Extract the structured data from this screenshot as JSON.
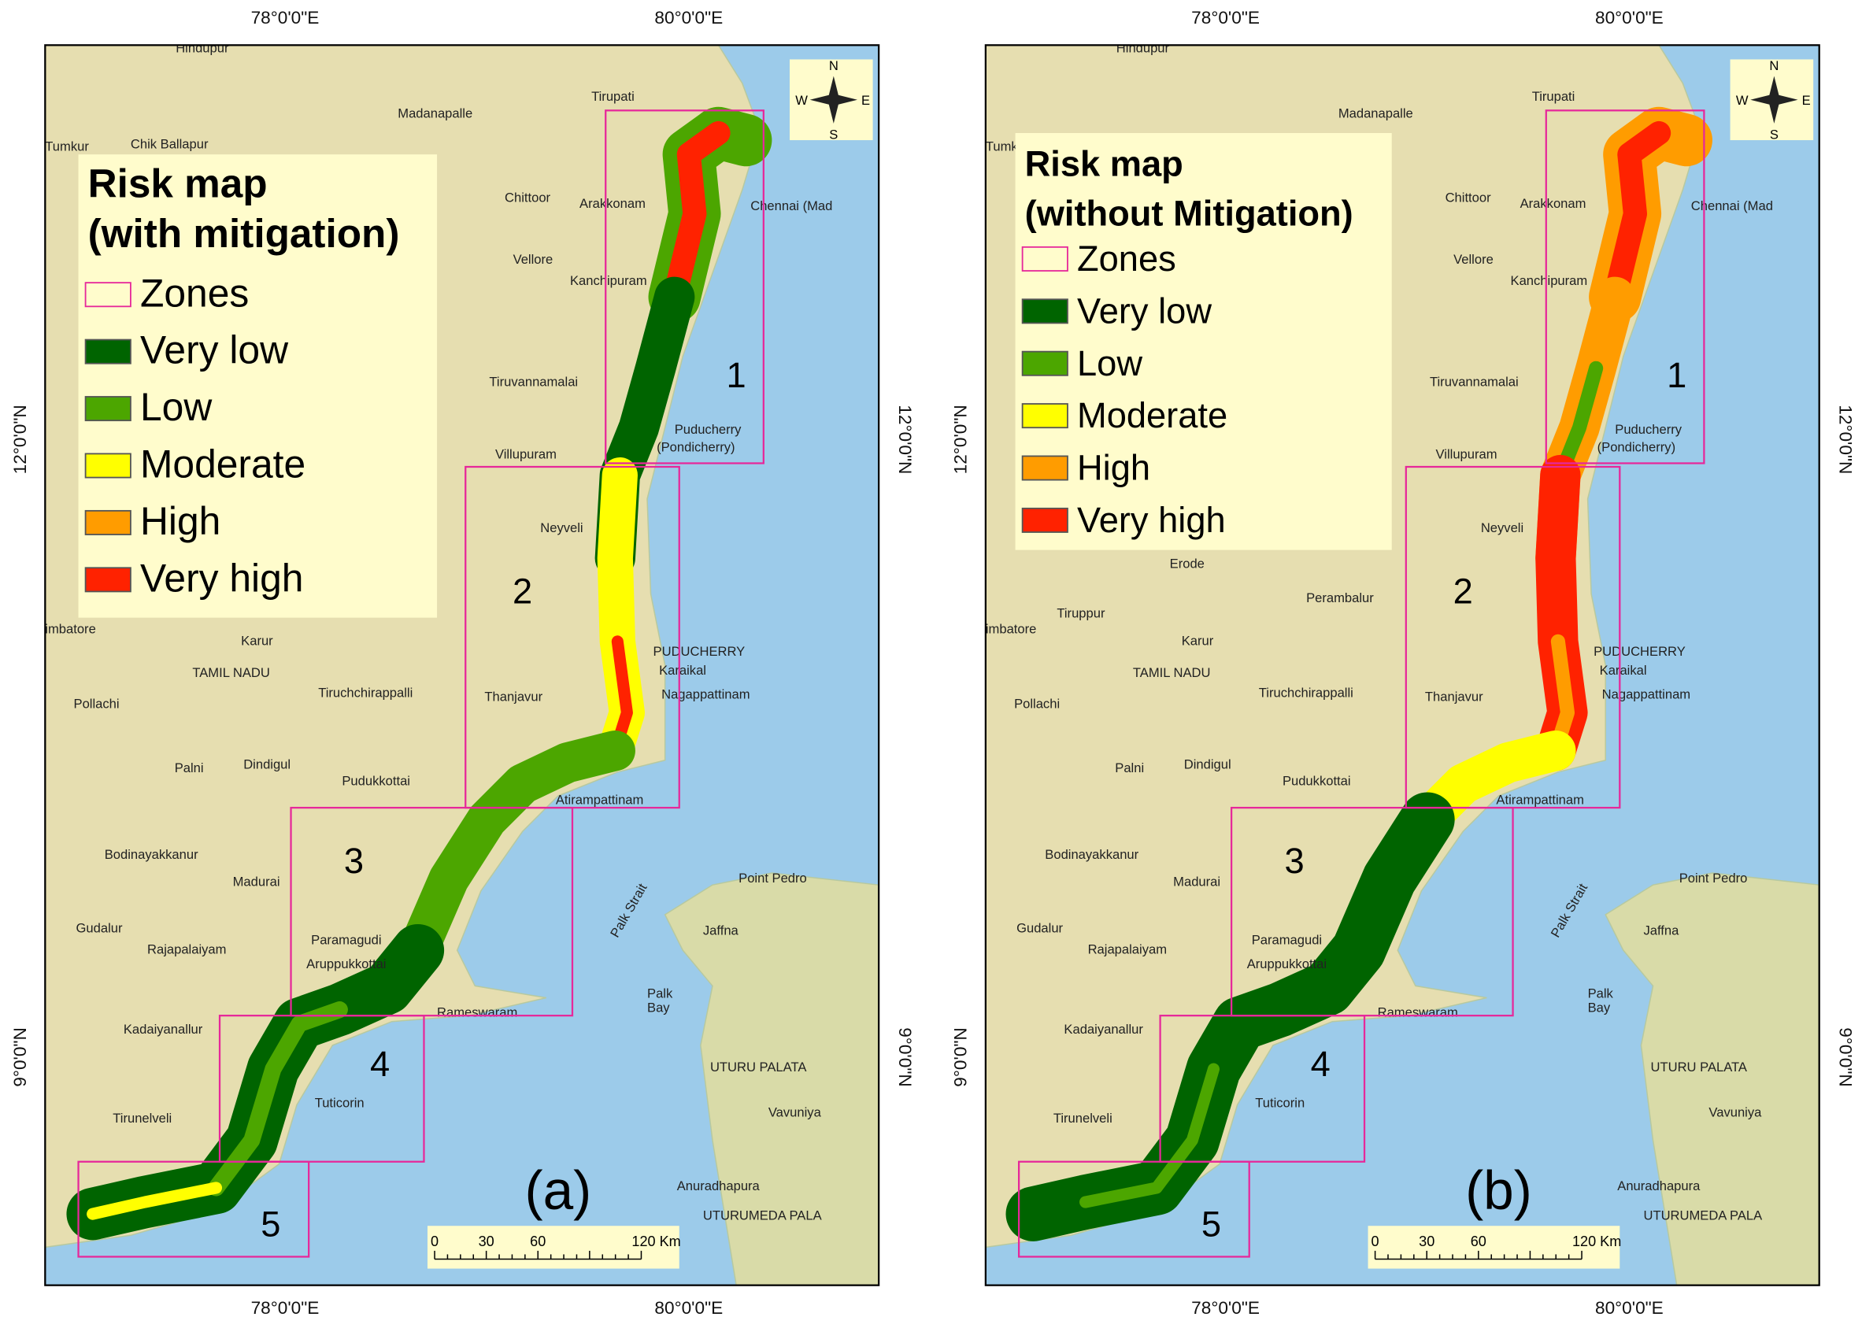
{
  "panels": [
    {
      "title": [
        "Risk map",
        "(with mitigation)"
      ],
      "panel_label": "(a)"
    },
    {
      "title": [
        "Risk map",
        "(without Mitigation)"
      ],
      "panel_label": "(b)"
    }
  ],
  "legend": [
    {
      "label": "Zones",
      "color": "#e6289a"
    },
    {
      "label": "Very low",
      "color": "#006400"
    },
    {
      "label": "Low",
      "color": "#4ca600"
    },
    {
      "label": "Moderate",
      "color": "#ffff00"
    },
    {
      "label": "High",
      "color": "#ff9c00"
    },
    {
      "label": "Very high",
      "color": "#ff2200"
    }
  ],
  "zones": [
    "1",
    "2",
    "3",
    "4",
    "5"
  ],
  "lon_ticks": [
    "78°0'0\"E",
    "80°0'0\"E"
  ],
  "lat_ticks": [
    "12°0'0\"N",
    "9°0'0\"N"
  ],
  "scale_bar": [
    "0",
    "30",
    "60",
    "120 Km"
  ],
  "compass": [
    "N",
    "E",
    "S",
    "W"
  ],
  "places": [
    "Hindupur",
    "Madanapalle",
    "Tirupati",
    "Chik Ballapur",
    "Tumkur",
    "Chittoor",
    "Arakkonam",
    "Vellore",
    "Kanchipuram",
    "Chennai (Mad",
    "Tiruvannamalai",
    "Puducherry",
    "(Pondicherry)",
    "Villupuram",
    "Neyveli",
    "PUDUCHERRY",
    "Karaikal",
    "Nagappattinam",
    "Karur",
    "TAMIL NADU",
    "Tiruchchirappalli",
    "Thanjavur",
    "Pollachi",
    "Palni",
    "Dindigul",
    "Pudukkottai",
    "Atirampattinam",
    "Bodinayakkanur",
    "Madurai",
    "Point Pedro",
    "Paramagudi",
    "Jaffna",
    "Palk Strait",
    "Gudalur",
    "Rajapalaiyam",
    "Aruppukkottai",
    "Palk",
    "Bay",
    "Rameswaram",
    "Kadaiyanallur",
    "UTURU PALATA",
    "Tuticorin",
    "Vavuniya",
    "Tirunelveli",
    "Anuradhapura",
    "UTURUMEDA PALA",
    "imbatore"
  ],
  "places_b": [
    "Erode",
    "Perambalur",
    "Tiruppur"
  ]
}
